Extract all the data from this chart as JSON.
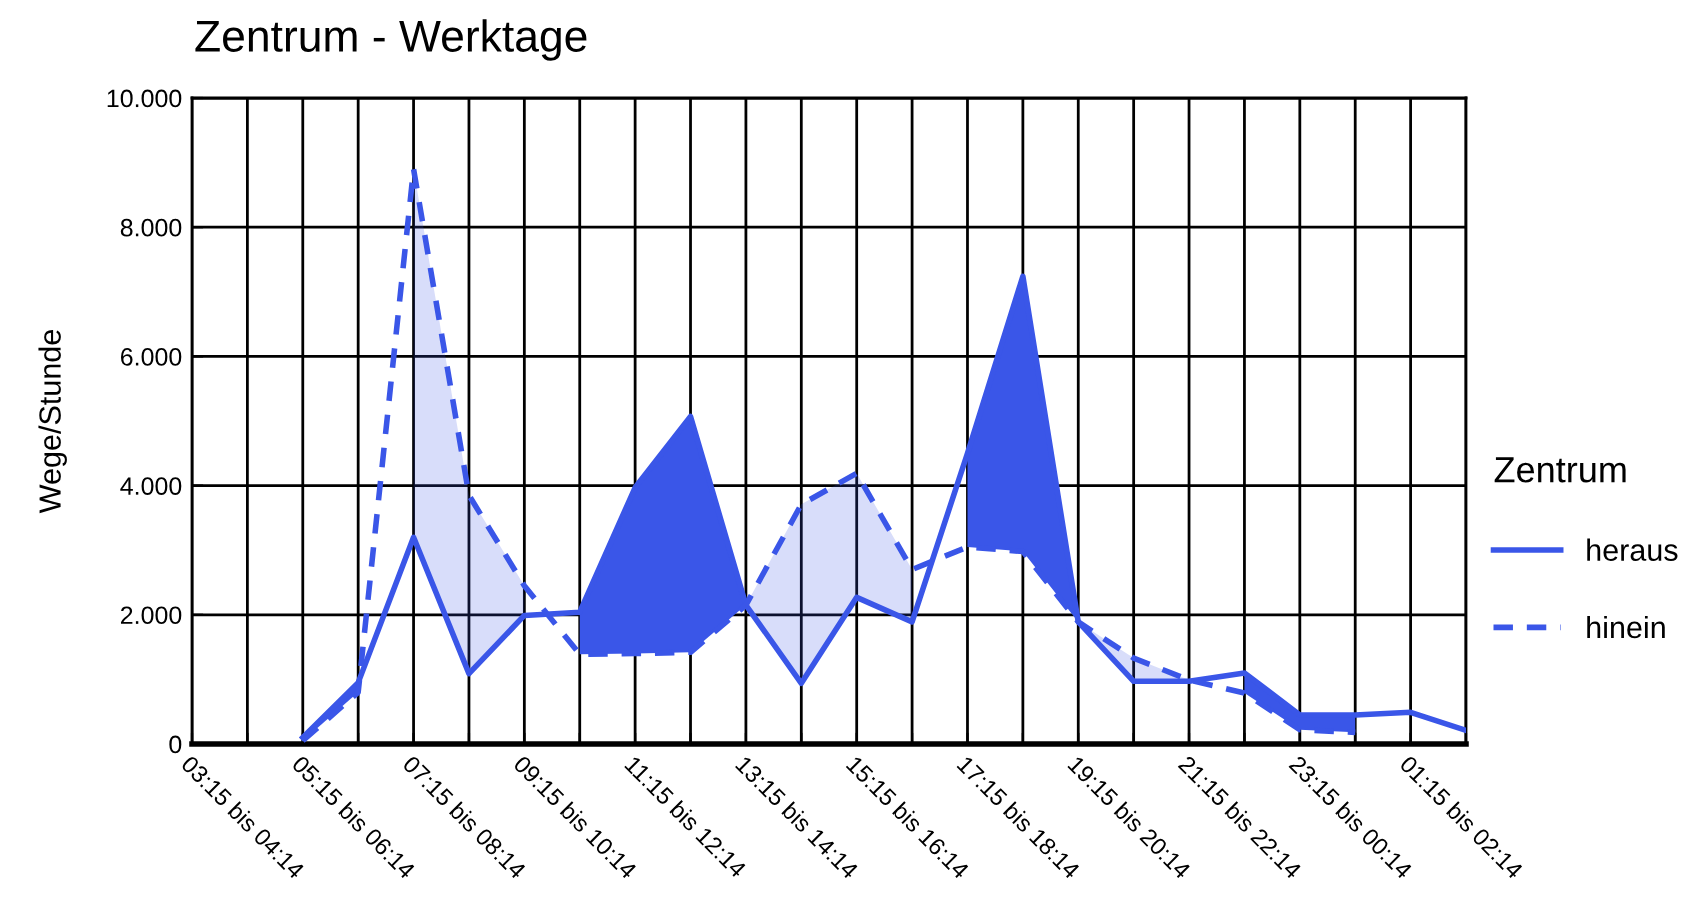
{
  "chart_data": {
    "type": "line",
    "title": "Zentrum - Werktage",
    "ylabel": "Wege/Stunde",
    "legend_title": "Zentrum",
    "categories": [
      "03:15 bis 04:14",
      null,
      "05:15 bis 06:14",
      null,
      "07:15 bis 08:14",
      null,
      "09:15 bis 10:14",
      null,
      "11:15 bis 12:14",
      null,
      "13:15 bis 14:14",
      null,
      "15:15 bis 16:14",
      null,
      "17:15 bis 18:14",
      null,
      "19:15 bis 20:14",
      null,
      "21:15 bis 22:14",
      null,
      "23:15 bis 00:14",
      null,
      "01:15 bis 02:14",
      null
    ],
    "series": [
      {
        "name": "heraus",
        "color": "#3a56e8",
        "line_style": "solid",
        "values": [
          null,
          null,
          100,
          950,
          3200,
          1090,
          1990,
          2040,
          3970,
          5070,
          2150,
          940,
          2270,
          1890,
          4500,
          7240,
          1890,
          970,
          970,
          1100,
          450,
          450,
          490,
          210
        ],
        "lower": [
          null,
          null,
          50,
          800,
          null,
          null,
          null,
          1390,
          1400,
          1420,
          2150,
          null,
          null,
          null,
          3050,
          2980,
          1890,
          null,
          null,
          790,
          220,
          180,
          null,
          null
        ],
        "upper": [
          null,
          null,
          100,
          950,
          null,
          null,
          null,
          2040,
          3970,
          5070,
          2150,
          null,
          null,
          null,
          4500,
          7240,
          1890,
          null,
          null,
          1100,
          450,
          450,
          null,
          null
        ]
      },
      {
        "name": "hinein",
        "color": "#3a56e8",
        "line_style": "dashed",
        "values": [
          null,
          null,
          50,
          800,
          8900,
          3850,
          2450,
          1390,
          1400,
          1420,
          2150,
          3710,
          4190,
          2700,
          3050,
          2980,
          1890,
          1330,
          990,
          790,
          220,
          180,
          null,
          null
        ],
        "lower": [
          null,
          null,
          null,
          null,
          3200,
          1090,
          1990,
          null,
          null,
          null,
          2150,
          940,
          2270,
          1890,
          null,
          null,
          1890,
          970,
          970,
          null,
          null,
          null,
          null,
          null
        ],
        "upper": [
          null,
          null,
          null,
          null,
          8900,
          3850,
          2450,
          null,
          null,
          null,
          2150,
          3710,
          4190,
          2700,
          null,
          null,
          1890,
          1330,
          990,
          null,
          null,
          null,
          null,
          null
        ]
      }
    ],
    "ylim": [
      0,
      10000
    ],
    "yticks": [
      0,
      {
        "value": 2000,
        "label": "2.000"
      },
      {
        "value": 4000,
        "label": "4.000"
      },
      {
        "value": 6000,
        "label": "6.000"
      },
      {
        "value": 8000,
        "label": "8.000"
      },
      {
        "value": 10000,
        "label": "10.000"
      }
    ],
    "grid": true,
    "legend": "right"
  }
}
